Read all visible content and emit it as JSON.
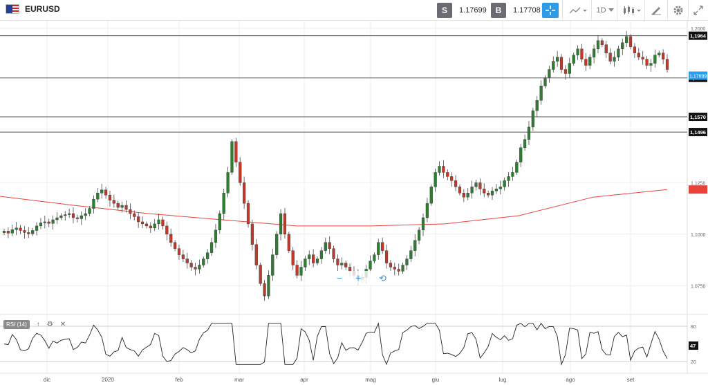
{
  "symbol": "EURUSD",
  "sell": {
    "label": "S",
    "price": "1.17699"
  },
  "buy": {
    "label": "B",
    "price": "1.17708"
  },
  "timeframe": "1D",
  "rsi_label": "RSI (14)",
  "colors": {
    "up": "#2e7d32",
    "down": "#c0392b",
    "ma": "#e8413a",
    "accent": "#2e9be6"
  },
  "chart_data": {
    "type": "candlestick",
    "ylim": [
      1.062,
      1.203
    ],
    "y_ticks": [
      {
        "value": 1.2,
        "label": "1,2000"
      },
      {
        "value": 1.125,
        "label": "1,1250"
      },
      {
        "value": 1.1,
        "label": "1,1000"
      },
      {
        "value": 1.075,
        "label": "1,0750"
      }
    ],
    "x_ticks": [
      "dic",
      "2020",
      "feb",
      "mar",
      "apr",
      "mag",
      "giu",
      "lug",
      "ago",
      "set"
    ],
    "hlines": [
      {
        "value": 1.1964,
        "label": "1,1964"
      },
      {
        "value": 1.1759,
        "label": "1,1759"
      },
      {
        "value": 1.157,
        "label": "1,1570"
      },
      {
        "value": 1.1496,
        "label": "1,1496"
      }
    ],
    "current_price": {
      "value": 1.17699,
      "label": "1,17699"
    },
    "ma_last": 1.1217,
    "ma": [
      1.1184,
      1.114,
      1.11,
      1.107,
      1.104,
      1.104,
      1.105,
      1.109,
      1.118,
      1.1217
    ],
    "closes": [
      1.1015,
      1.1005,
      1.1022,
      1.103,
      1.1018,
      1.1008,
      1.1002,
      1.1018,
      1.104,
      1.1055,
      1.106,
      1.1052,
      1.107,
      1.108,
      1.109,
      1.1095,
      1.11,
      1.108,
      1.1075,
      1.109,
      1.11,
      1.1125,
      1.117,
      1.12,
      1.1215,
      1.119,
      1.1165,
      1.115,
      1.113,
      1.114,
      1.112,
      1.11,
      1.1085,
      1.106,
      1.105,
      1.104,
      1.103,
      1.105,
      1.107,
      1.104,
      1.1,
      1.096,
      1.093,
      1.09,
      1.088,
      1.086,
      1.084,
      1.083,
      1.085,
      1.088,
      1.091,
      1.096,
      1.102,
      1.11,
      1.12,
      1.13,
      1.145,
      1.135,
      1.125,
      1.115,
      1.105,
      1.095,
      1.085,
      1.076,
      1.07,
      1.08,
      1.09,
      1.1,
      1.11,
      1.1,
      1.092,
      1.085,
      1.08,
      1.084,
      1.088,
      1.09,
      1.086,
      1.088,
      1.092,
      1.096,
      1.093,
      1.088,
      1.085,
      1.086,
      1.084,
      1.082,
      1.08,
      1.078,
      1.079,
      1.083,
      1.087,
      1.09,
      1.096,
      1.092,
      1.086,
      1.084,
      1.083,
      1.082,
      1.085,
      1.088,
      1.092,
      1.097,
      1.102,
      1.108,
      1.115,
      1.123,
      1.13,
      1.133,
      1.13,
      1.128,
      1.126,
      1.123,
      1.12,
      1.118,
      1.12,
      1.123,
      1.125,
      1.122,
      1.12,
      1.119,
      1.121,
      1.122,
      1.123,
      1.126,
      1.128,
      1.13,
      1.135,
      1.142,
      1.146,
      1.152,
      1.16,
      1.165,
      1.172,
      1.176,
      1.18,
      1.184,
      1.186,
      1.18,
      1.178,
      1.183,
      1.187,
      1.19,
      1.185,
      1.182,
      1.186,
      1.19,
      1.194,
      1.192,
      1.188,
      1.184,
      1.186,
      1.19,
      1.193,
      1.196,
      1.191,
      1.188,
      1.186,
      1.185,
      1.182,
      1.183,
      1.187,
      1.188,
      1.185,
      1.18
    ],
    "rsi": {
      "levels": [
        80,
        20
      ],
      "last": 47
    }
  }
}
